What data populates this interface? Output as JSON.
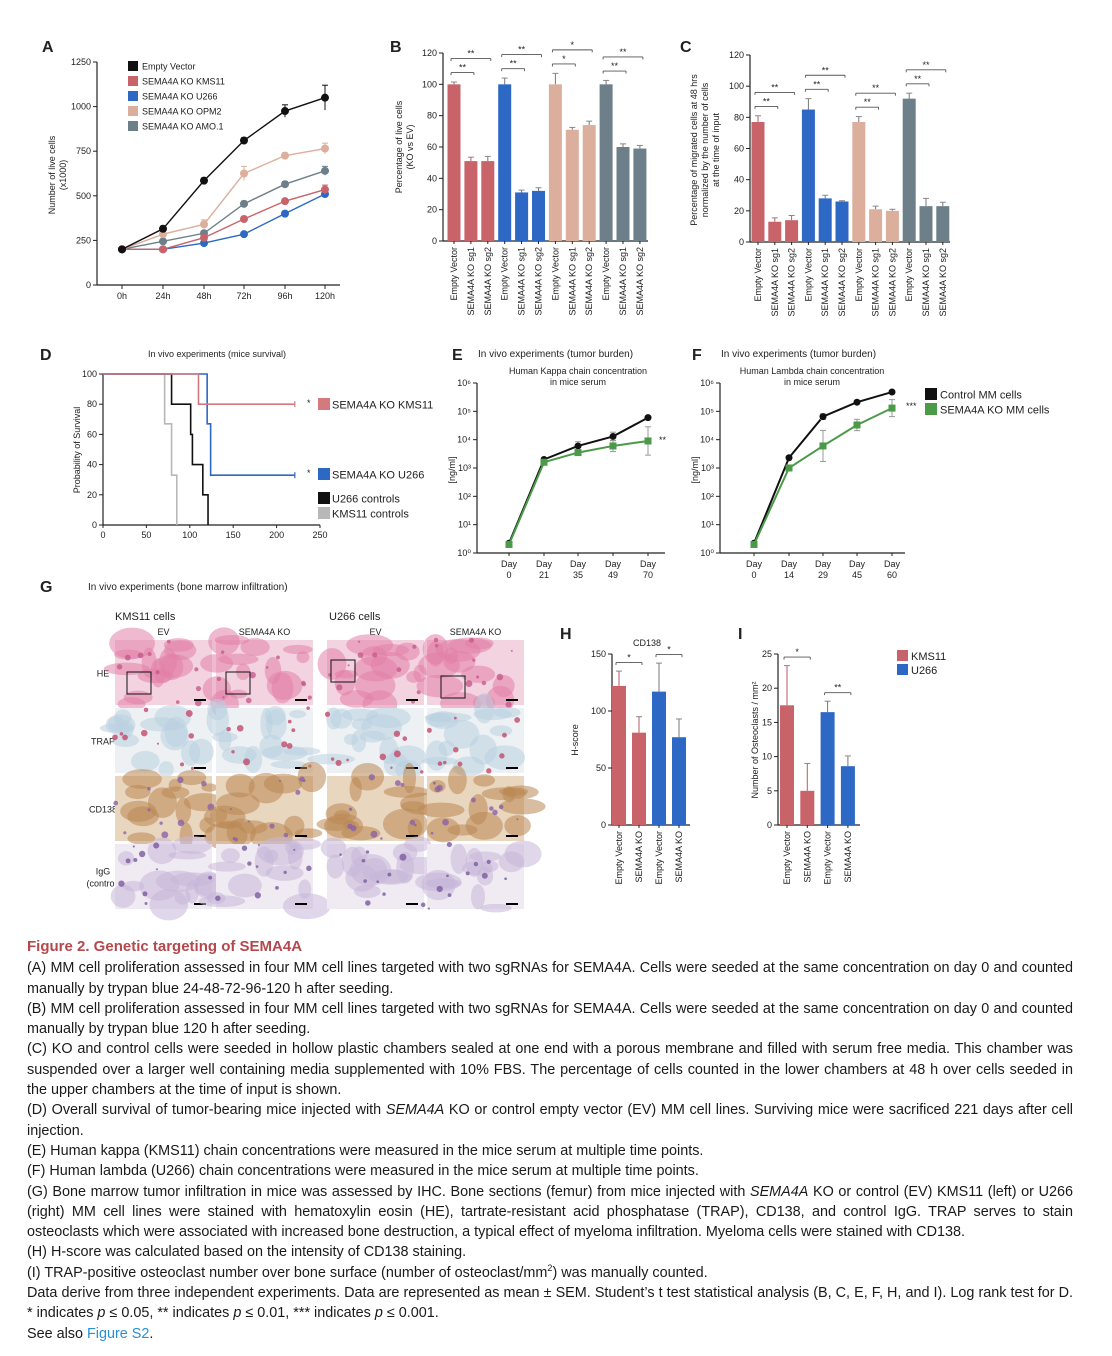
{
  "panel_labels": [
    "A",
    "B",
    "C",
    "D",
    "E",
    "F",
    "G",
    "H",
    "I"
  ],
  "colors": {
    "kms11": "#c8636a",
    "u266": "#2d68c4",
    "opm2": "#dcae9c",
    "amo1": "#6d7f88",
    "control": "#111111",
    "ko_green": "#4a9a48",
    "kms11_controls": "#b8b8b8",
    "title_red": "#b5484d",
    "link": "#2b8fd6"
  },
  "chart_data": [
    {
      "panel": "A",
      "type": "line",
      "ylabel": [
        "Number of live cells",
        "(x1000)"
      ],
      "categories": [
        "0h",
        "24h",
        "48h",
        "72h",
        "96h",
        "120h"
      ],
      "ylim": [
        0,
        1250
      ],
      "yticks": [
        0,
        250,
        500,
        750,
        1000,
        1250
      ],
      "legend_position": "top-left",
      "series": [
        {
          "name": "Empty Vector",
          "color": "#111111",
          "values": [
            200,
            315,
            585,
            810,
            975,
            1050
          ],
          "errors": [
            5,
            15,
            15,
            15,
            35,
            70
          ]
        },
        {
          "name": "SEMA4A KO KMS11",
          "color": "#c8636a",
          "values": [
            200,
            200,
            265,
            370,
            470,
            535
          ],
          "errors": [
            5,
            10,
            10,
            12,
            10,
            25
          ]
        },
        {
          "name": "SEMA4A KO U266",
          "color": "#2d68c4",
          "values": [
            200,
            200,
            235,
            285,
            400,
            510
          ],
          "errors": [
            5,
            5,
            10,
            10,
            10,
            15
          ]
        },
        {
          "name": "SEMA4A KO OPM2",
          "color": "#dcae9c",
          "values": [
            200,
            285,
            340,
            625,
            725,
            765
          ],
          "errors": [
            5,
            10,
            25,
            40,
            15,
            30
          ]
        },
        {
          "name": "SEMA4A KO AMO.1",
          "color": "#6d7f88",
          "values": [
            200,
            245,
            290,
            455,
            565,
            640
          ],
          "errors": [
            5,
            10,
            15,
            15,
            15,
            25
          ]
        }
      ]
    },
    {
      "panel": "B",
      "type": "bar",
      "ylabel": [
        "Percentage of live cells",
        "(KO vs EV)"
      ],
      "ylim": [
        0,
        120
      ],
      "yticks": [
        0,
        20,
        40,
        60,
        80,
        100,
        120
      ],
      "categories": [
        "Empty Vector",
        "SEMA4A KO sg1",
        "SEMA4A KO sg2",
        "Empty Vector",
        "SEMA4A KO sg1",
        "SEMA4A KO sg2",
        "Empty Vector",
        "SEMA4A KO sg1",
        "SEMA4A KO sg2",
        "Empty Vector",
        "SEMA4A KO sg1",
        "SEMA4A KO sg2"
      ],
      "groups": [
        {
          "color": "#c8636a",
          "values": [
            100,
            51,
            51
          ],
          "errors": [
            1.5,
            2.5,
            3
          ]
        },
        {
          "color": "#2d68c4",
          "values": [
            100,
            31,
            32
          ],
          "errors": [
            4,
            1.5,
            2
          ]
        },
        {
          "color": "#dcae9c",
          "values": [
            100,
            71,
            74
          ],
          "errors": [
            7,
            1.5,
            2.5
          ]
        },
        {
          "color": "#6d7f88",
          "values": [
            100,
            60,
            59
          ],
          "errors": [
            2.5,
            2,
            2
          ]
        }
      ],
      "significance": [
        {
          "from": 0,
          "to": 1,
          "label": "**"
        },
        {
          "from": 0,
          "to": 2,
          "label": "**"
        },
        {
          "from": 3,
          "to": 4,
          "label": "**"
        },
        {
          "from": 3,
          "to": 5,
          "label": "**"
        },
        {
          "from": 6,
          "to": 7,
          "label": "*"
        },
        {
          "from": 6,
          "to": 8,
          "label": "*"
        },
        {
          "from": 9,
          "to": 10,
          "label": "**"
        },
        {
          "from": 9,
          "to": 11,
          "label": "**"
        }
      ]
    },
    {
      "panel": "C",
      "type": "bar",
      "ylabel": [
        "Percentage of migrated cells at 48 hrs",
        "normalized by the number of cells",
        "at the time of input"
      ],
      "ylim": [
        0,
        120
      ],
      "yticks": [
        0,
        20,
        40,
        60,
        80,
        100,
        120
      ],
      "categories": [
        "Empty Vector",
        "SEMA4A KO sg1",
        "SEMA4A KO sg2",
        "Empty Vector",
        "SEMA4A KO sg1",
        "SEMA4A KO sg2",
        "Empty Vector",
        "SEMA4A KO sg1",
        "SEMA4A KO sg2",
        "Empty Vector",
        "SEMA4A KO sg1",
        "SEMA4A KO sg2"
      ],
      "groups": [
        {
          "color": "#c8636a",
          "values": [
            77,
            13,
            14
          ],
          "errors": [
            4,
            2.5,
            3
          ]
        },
        {
          "color": "#2d68c4",
          "values": [
            85,
            28,
            26
          ],
          "errors": [
            7,
            2,
            0.5
          ]
        },
        {
          "color": "#dcae9c",
          "values": [
            77,
            21,
            20
          ],
          "errors": [
            3.5,
            2,
            1
          ]
        },
        {
          "color": "#6d7f88",
          "values": [
            92,
            23,
            23
          ],
          "errors": [
            3.5,
            5,
            2.5
          ]
        }
      ],
      "significance": [
        {
          "from": 0,
          "to": 1,
          "label": "**"
        },
        {
          "from": 0,
          "to": 2,
          "label": "**"
        },
        {
          "from": 3,
          "to": 4,
          "label": "**"
        },
        {
          "from": 3,
          "to": 5,
          "label": "**"
        },
        {
          "from": 6,
          "to": 7,
          "label": "**"
        },
        {
          "from": 6,
          "to": 8,
          "label": "**"
        },
        {
          "from": 9,
          "to": 10,
          "label": "**"
        },
        {
          "from": 9,
          "to": 11,
          "label": "**"
        }
      ]
    },
    {
      "panel": "D",
      "type": "step",
      "title": "In vivo experiments (mice survival)",
      "ylabel": "Probability of Survival",
      "xlim": [
        0,
        250
      ],
      "xticks": [
        0,
        50,
        100,
        150,
        200,
        250
      ],
      "ylim": [
        0,
        100
      ],
      "yticks": [
        0,
        20,
        40,
        60,
        80,
        100
      ],
      "series": [
        {
          "name": "SEMA4A KO KMS11",
          "color": "#d47a7e",
          "points": [
            [
              0,
              100
            ],
            [
              110,
              80
            ],
            [
              221,
              80
            ]
          ],
          "marker": "*"
        },
        {
          "name": "SEMA4A KO U266",
          "color": "#2d68c4",
          "points": [
            [
              0,
              100
            ],
            [
              120,
              67
            ],
            [
              124,
              33
            ],
            [
              221,
              33
            ]
          ],
          "marker": "*"
        },
        {
          "name": "U266 controls",
          "color": "#111111",
          "points": [
            [
              0,
              100
            ],
            [
              79,
              80
            ],
            [
              101,
              60
            ],
            [
              103,
              40
            ],
            [
              115,
              20
            ],
            [
              121,
              0
            ]
          ]
        },
        {
          "name": "KMS11 controls",
          "color": "#b8b8b8",
          "points": [
            [
              0,
              100
            ],
            [
              71,
              67
            ],
            [
              79,
              33
            ],
            [
              85,
              0
            ]
          ]
        }
      ]
    },
    {
      "panel": "E",
      "type": "line",
      "yscale": "log",
      "section_title": "In vivo experiments (tumor burden)",
      "title": [
        "Human Kappa chain concentration",
        "in mice serum"
      ],
      "ylabel": "[ng/ml]",
      "categories": [
        [
          "Day",
          "0"
        ],
        [
          "Day",
          "21"
        ],
        [
          "Day",
          "35"
        ],
        [
          "Day",
          "49"
        ],
        [
          "Day",
          "70"
        ]
      ],
      "ylim": [
        1,
        1000000
      ],
      "yticks": [
        "10⁰",
        "10¹",
        "10²",
        "10³",
        "10⁴",
        "10⁵",
        "10⁶"
      ],
      "significance": "**",
      "series": [
        {
          "name": "Control MM cells",
          "color": "#111111",
          "marker": "circle",
          "values": [
            2.2,
            2000,
            6000,
            13000,
            60000
          ],
          "errors_log": [
            0.05,
            0.05,
            0.15,
            0.15,
            0.05
          ]
        },
        {
          "name": "SEMA4A KO MM cells",
          "color": "#4a9a48",
          "marker": "square",
          "values": [
            2,
            1600,
            3500,
            6000,
            9000
          ],
          "errors_log": [
            0.05,
            0.05,
            0.1,
            0.2,
            0.5
          ]
        }
      ]
    },
    {
      "panel": "F",
      "type": "line",
      "yscale": "log",
      "section_title": "In vivo experiments (tumor burden)",
      "title": [
        "Human Lambda chain concentration",
        "in mice serum"
      ],
      "ylabel": "[ng/ml]",
      "categories": [
        [
          "Day",
          "0"
        ],
        [
          "Day",
          "14"
        ],
        [
          "Day",
          "29"
        ],
        [
          "Day",
          "45"
        ],
        [
          "Day",
          "60"
        ]
      ],
      "ylim": [
        1,
        1000000
      ],
      "yticks": [
        "10⁰",
        "10¹",
        "10²",
        "10³",
        "10⁴",
        "10⁵",
        "10⁶"
      ],
      "significance": "***",
      "legend": [
        "Control MM cells",
        "SEMA4A KO MM cells"
      ],
      "series": [
        {
          "name": "Control MM cells",
          "color": "#111111",
          "marker": "circle",
          "values": [
            2.2,
            2300,
            65000,
            210000,
            480000
          ],
          "errors_log": [
            0.05,
            0.05,
            0.1,
            0.05,
            0.05
          ]
        },
        {
          "name": "SEMA4A KO MM cells",
          "color": "#4a9a48",
          "marker": "square",
          "values": [
            2,
            1000,
            6000,
            33000,
            130000
          ],
          "errors_log": [
            0.05,
            0.05,
            0.55,
            0.2,
            0.3
          ]
        }
      ]
    },
    {
      "panel": "H",
      "type": "bar",
      "title": "CD138",
      "ylabel": [
        "H-score"
      ],
      "ylim": [
        0,
        150
      ],
      "yticks": [
        0,
        50,
        100,
        150
      ],
      "categories": [
        "Empty Vector",
        "SEMA4A KO",
        "Empty Vector",
        "SEMA4A KO"
      ],
      "groups": [
        {
          "color": "#c8636a",
          "values": [
            122,
            81
          ],
          "errors": [
            13,
            14
          ]
        },
        {
          "color": "#2d68c4",
          "values": [
            117,
            77
          ],
          "errors": [
            25,
            16
          ]
        }
      ],
      "significance": [
        {
          "from": 0,
          "to": 1,
          "label": "*"
        },
        {
          "from": 2,
          "to": 3,
          "label": "*"
        }
      ]
    },
    {
      "panel": "I",
      "type": "bar",
      "ylabel": [
        "Number of  Osteoclasts / mm²"
      ],
      "ylim": [
        0,
        25
      ],
      "yticks": [
        0,
        5,
        10,
        15,
        20,
        25
      ],
      "categories": [
        "Empty Vector",
        "SEMA4A KO",
        "Empty Vector",
        "SEMA4A KO"
      ],
      "groups": [
        {
          "color": "#c8636a",
          "values": [
            17.5,
            5
          ],
          "errors": [
            5.8,
            4
          ]
        },
        {
          "color": "#2d68c4",
          "values": [
            16.5,
            8.6
          ],
          "errors": [
            1.6,
            1.5
          ]
        }
      ],
      "significance": [
        {
          "from": 0,
          "to": 1,
          "label": "*"
        },
        {
          "from": 2,
          "to": 3,
          "label": "**"
        }
      ],
      "legend": [
        {
          "name": "KMS11",
          "color": "#c8636a"
        },
        {
          "name": "U266",
          "color": "#2d68c4"
        }
      ]
    }
  ],
  "histology": {
    "title": "In vivo experiments (bone marrow infiltration)",
    "cell_lines": [
      "KMS11 cells",
      "U266 cells"
    ],
    "columns": [
      "EV",
      "SEMA4A KO",
      "EV",
      "SEMA4A KO"
    ],
    "rows": [
      [
        "HE"
      ],
      [
        "TRAP"
      ],
      [
        "CD138"
      ],
      [
        "IgG",
        "(control)"
      ]
    ]
  },
  "caption": {
    "title": "Figure 2.  Genetic targeting of SEMA4A",
    "paragraphs": [
      [
        {
          "t": "(A) MM cell proliferation assessed in four MM cell lines targeted with two sgRNAs for SEMA4A. Cells were seeded at the same concentration on day 0 and counted manually by trypan blue 24-48-72-96-120 h after seeding."
        }
      ],
      [
        {
          "t": "(B) MM cell proliferation assessed in four MM cell lines targeted with two sgRNAs for SEMA4A. Cells were seeded at the same concentration on day 0 and counted manually by trypan blue 120 h after seeding."
        }
      ],
      [
        {
          "t": "(C) KO and control cells were seeded in hollow plastic chambers sealed at one end with a porous membrane and filled with serum free media. This chamber was suspended over a larger well containing media supplemented with 10% FBS. The percentage of cells counted in the lower chambers at 48 h over cells seeded in the upper chambers at the time of input is shown."
        }
      ],
      [
        {
          "t": "(D) Overall survival of tumor-bearing mice injected with "
        },
        {
          "t": "SEMA4A",
          "s": "i"
        },
        {
          "t": " KO or control empty vector (EV) MM cell lines. Surviving mice were sacrificed 221 days after cell injection."
        }
      ],
      [
        {
          "t": "(E) Human kappa (KMS11) chain concentrations were measured in the mice serum at multiple time points."
        }
      ],
      [
        {
          "t": "(F) Human lambda (U266) chain concentrations were measured in the mice serum at multiple time points."
        }
      ],
      [
        {
          "t": "(G) Bone marrow tumor infiltration in mice was assessed by IHC. Bone sections (femur) from mice injected with "
        },
        {
          "t": "SEMA4A",
          "s": "i"
        },
        {
          "t": " KO or control (EV) KMS11 (left) or U266 (right) MM cell lines were stained with hematoxylin eosin (HE), tartrate-resistant acid phosphatase (TRAP), CD138, and control IgG. TRAP serves to stain osteoclasts which were associated with increased bone destruction, a typical effect of myeloma infiltration. Myeloma cells were stained with CD138."
        }
      ],
      [
        {
          "t": "(H) H-score was calculated based on the intensity of CD138 staining."
        }
      ],
      [
        {
          "t": "(I) TRAP-positive osteoclast number over bone surface (number of osteoclast/mm"
        },
        {
          "t": "2",
          "s": "sup"
        },
        {
          "t": ") was manually counted."
        }
      ],
      [
        {
          "t": "Data derive from three independent experiments. Data are represented as mean ± SEM. Student’s t test statistical analysis (B, C, E, F, H, and I). Log rank test for D. * indicates "
        },
        {
          "t": "p",
          "s": "i"
        },
        {
          "t": " ≤ 0.05, ** indicates "
        },
        {
          "t": "p",
          "s": "i"
        },
        {
          "t": " ≤ 0.01, *** indicates "
        },
        {
          "t": "p",
          "s": "i"
        },
        {
          "t": " ≤ 0.001."
        }
      ],
      [
        {
          "t": "See also "
        },
        {
          "t": "Figure S2",
          "s": "link"
        },
        {
          "t": "."
        }
      ]
    ]
  }
}
